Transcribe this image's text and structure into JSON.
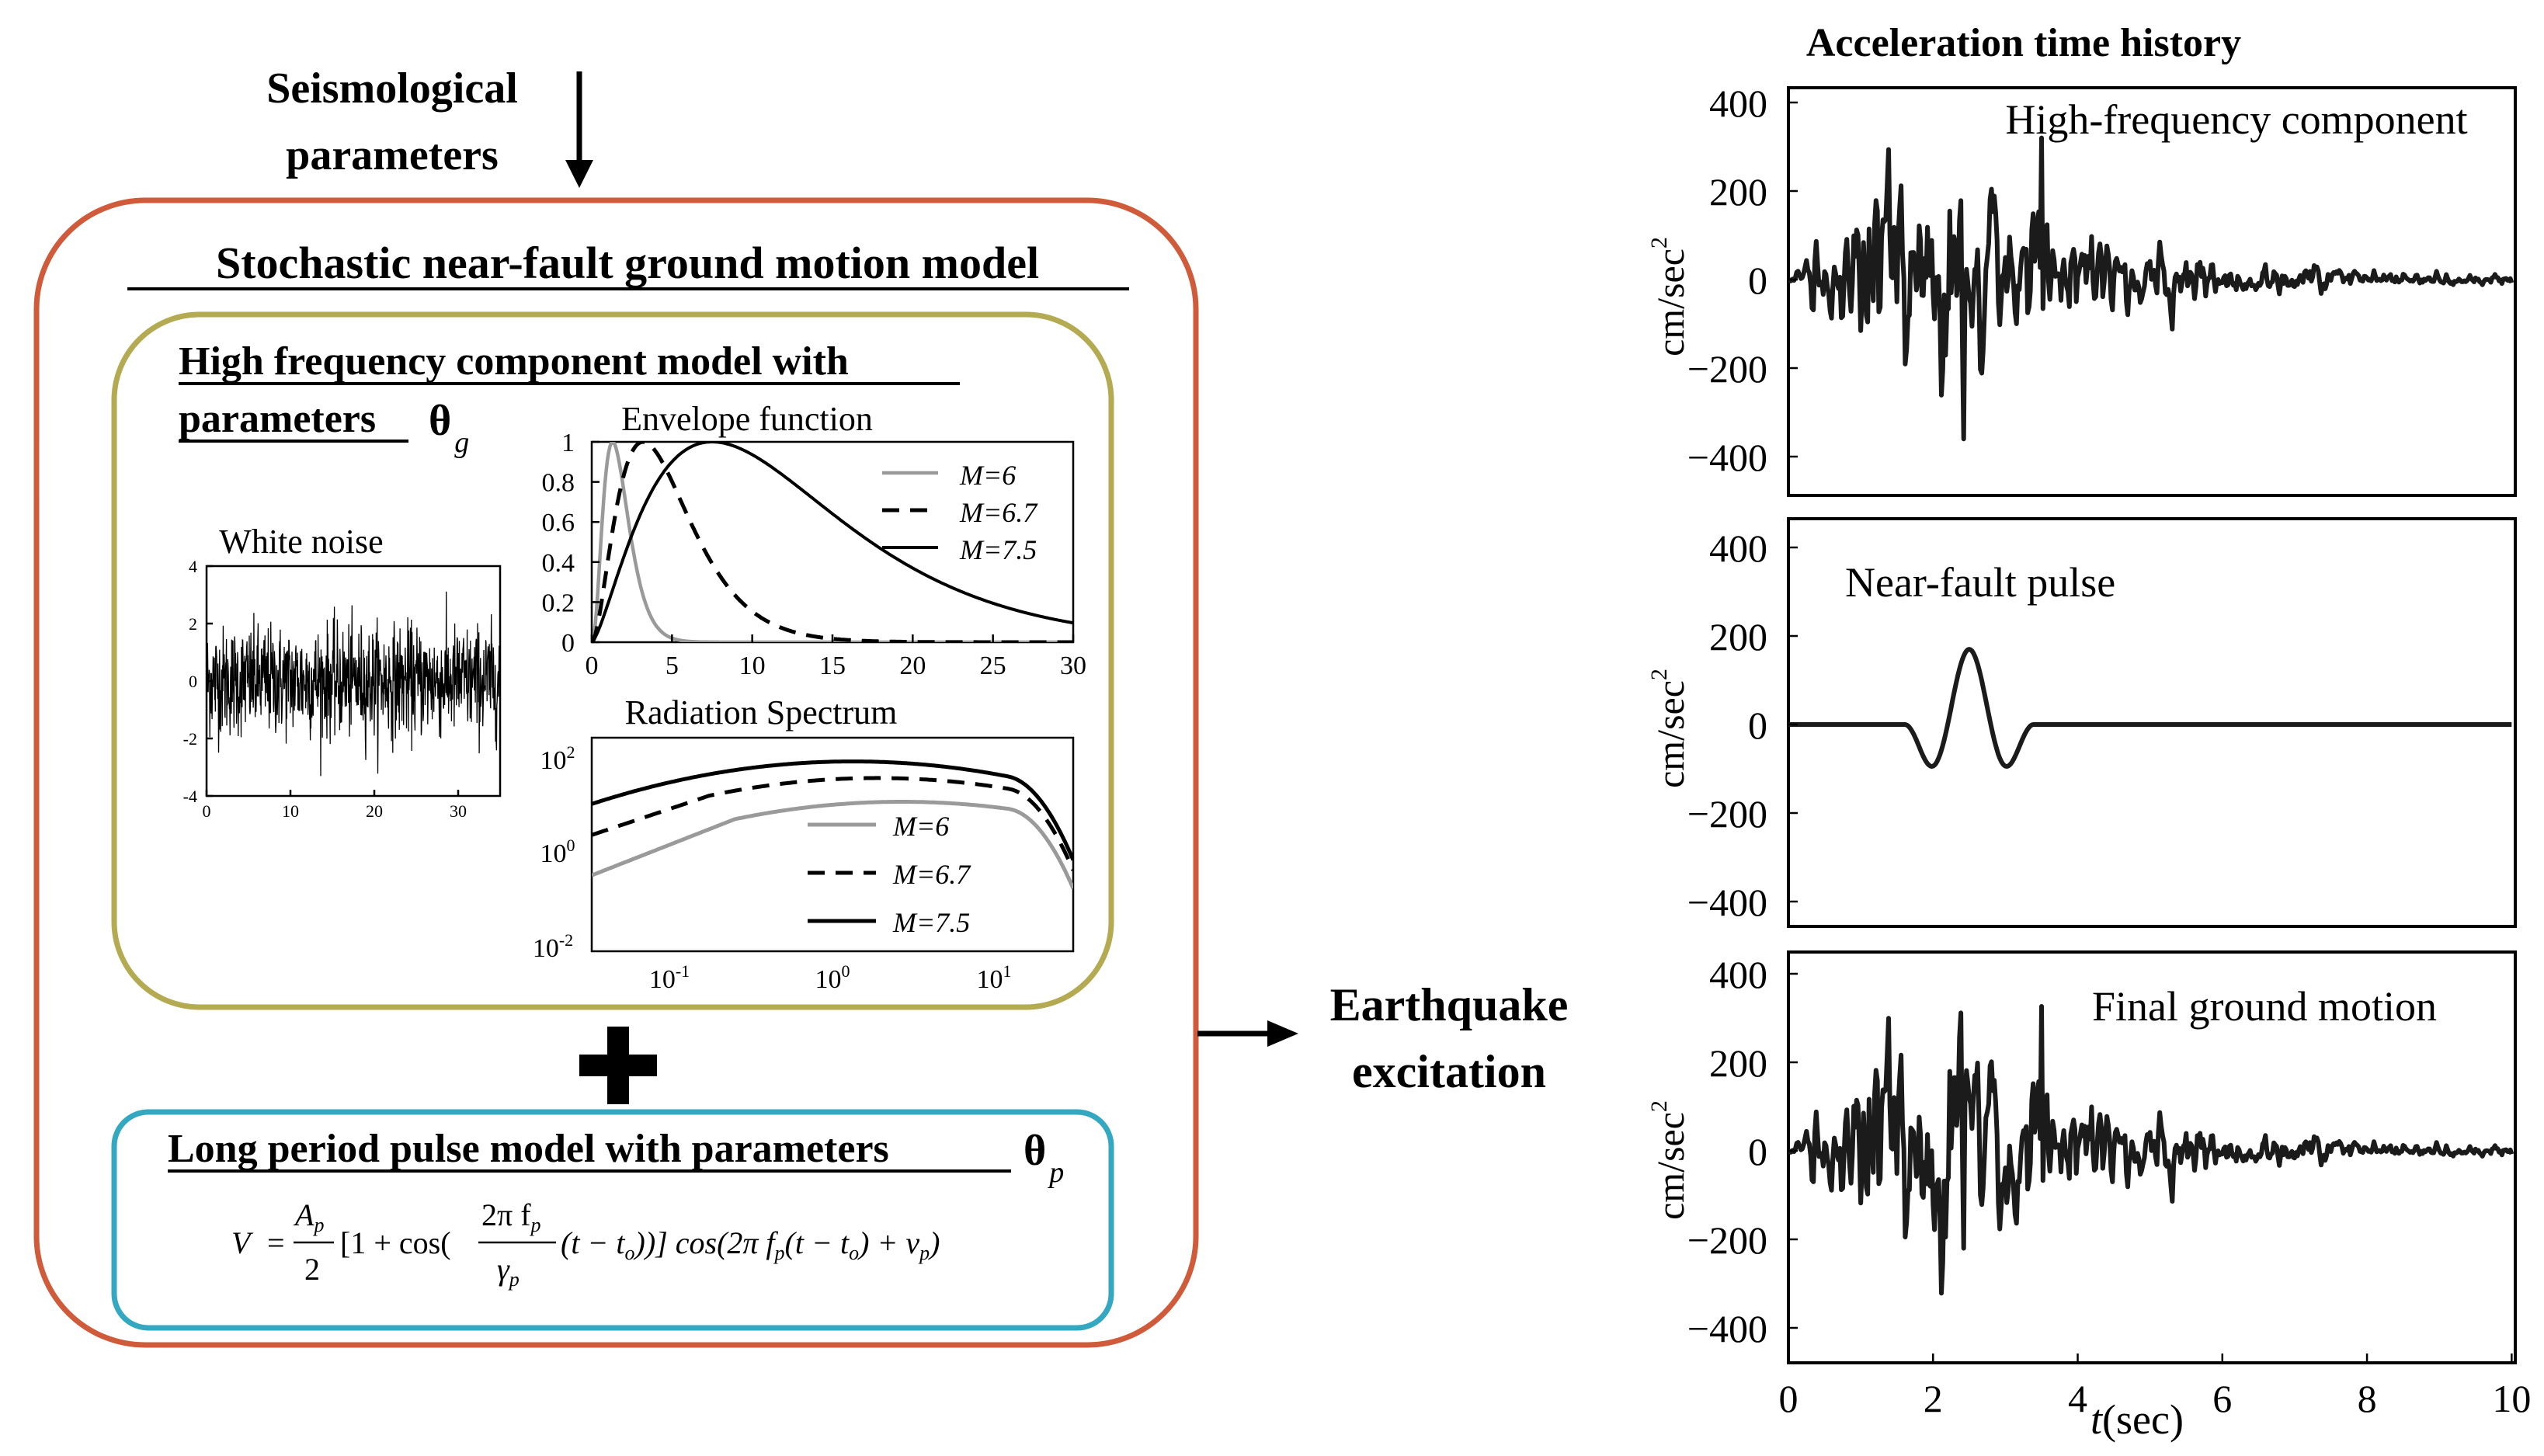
{
  "colors": {
    "outer_box": "#cf5b3a",
    "hf_box": "#b3aa52",
    "pulse_box": "#33a8c0",
    "trace": "#1b1b1b",
    "gray_curve": "#9a9a9a"
  },
  "inputs": {
    "seismo_line1": "Seismological",
    "seismo_line2": "parameters"
  },
  "model": {
    "title": "Stochastic near-fault ground motion model",
    "hf": {
      "title_line1": "High frequency component model with",
      "title_line2": "parameters",
      "theta": "θ",
      "theta_sub": "g"
    },
    "plus": "+",
    "pulse": {
      "title": "Long period pulse model with parameters",
      "theta": "θ",
      "theta_sub": "p",
      "equation": {
        "lhs": "V",
        "eq": "=",
        "num_A": "A",
        "num_A_sub": "p",
        "den_2": "2",
        "mid1": "[1 + cos(",
        "frac2_num": "2π f",
        "frac2_num_sub": "p",
        "frac2_den": "γ",
        "frac2_den_sub": "p",
        "mid2": "(t − t",
        "mid2_sub": "o",
        "mid3": "))] cos(2π f",
        "mid3_sub": "p",
        "mid4": "(t − t",
        "mid4_sub": "o",
        "mid5": ") + ν",
        "mid5_sub": "p",
        "mid6": ")"
      }
    }
  },
  "white_noise": {
    "title": "White noise",
    "y_ticks": [
      "4",
      "2",
      "0",
      "-2",
      "-4"
    ],
    "x_ticks": [
      "0",
      "10",
      "20",
      "30"
    ]
  },
  "envelope": {
    "title": "Envelope function",
    "y_ticks": [
      "1",
      "0.8",
      "0.6",
      "0.4",
      "0.2",
      "0"
    ],
    "x_ticks": [
      "0",
      "5",
      "10",
      "15",
      "20",
      "25",
      "30"
    ],
    "legend": [
      "M=6",
      "M=6.7",
      "M=7.5"
    ]
  },
  "radiation": {
    "title": "Radiation Spectrum",
    "y_ticks": [
      {
        "base": "10",
        "exp": "2"
      },
      {
        "base": "10",
        "exp": "0"
      },
      {
        "base": "10",
        "exp": "-2"
      }
    ],
    "x_ticks": [
      {
        "base": "10",
        "exp": "-1"
      },
      {
        "base": "10",
        "exp": "0"
      },
      {
        "base": "10",
        "exp": "1"
      }
    ],
    "legend": [
      "M=6",
      "M=6.7",
      "M=7.5"
    ]
  },
  "output": {
    "line1": "Earthquake",
    "line2": "excitation"
  },
  "acc": {
    "title": "Acceleration time history",
    "y_ticks": [
      "400",
      "200",
      "0",
      "−200",
      "−400"
    ],
    "ylabel": "cm/sec",
    "ylabel_sup": "2",
    "x_ticks": [
      "0",
      "2",
      "4",
      "6",
      "8",
      "10"
    ],
    "xlabel": "t",
    "xlabel_unit": "(sec)",
    "panels": [
      {
        "label": "High-frequency component"
      },
      {
        "label": "Near-fault pulse"
      },
      {
        "label": "Final ground motion"
      }
    ]
  }
}
